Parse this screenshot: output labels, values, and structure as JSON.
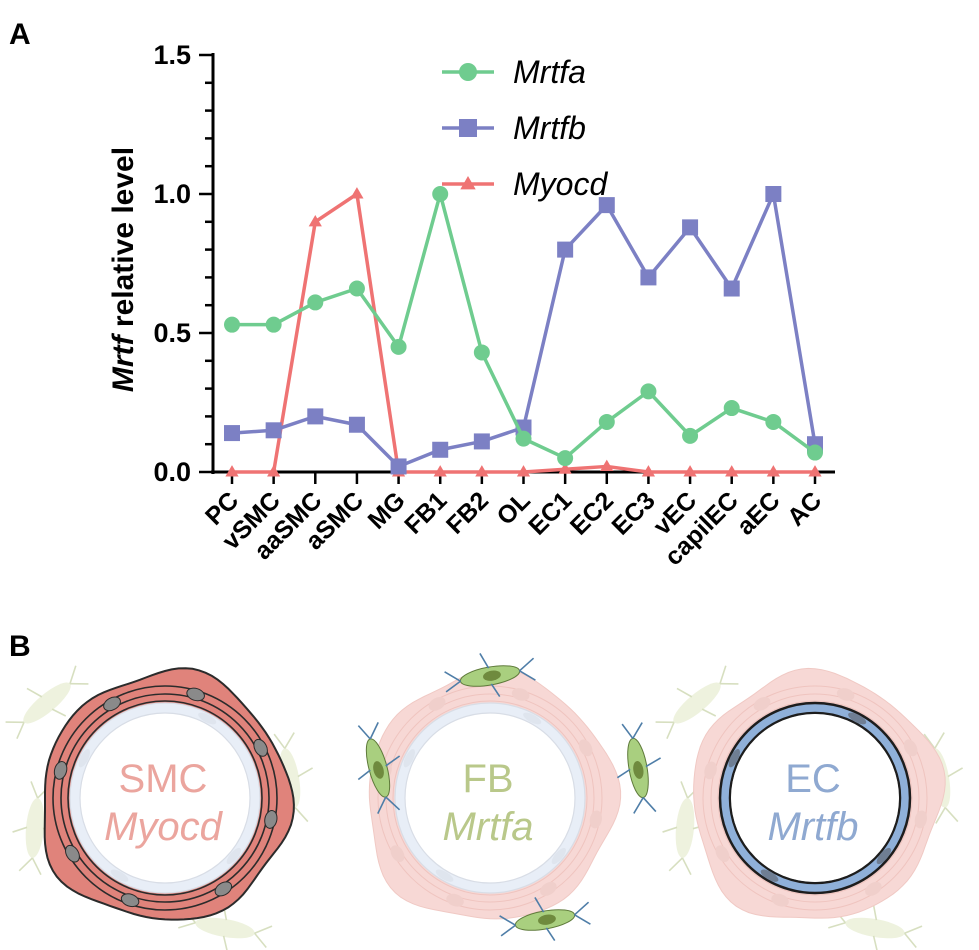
{
  "panel_a_label": "A",
  "panel_b_label": "B",
  "chart_data": {
    "type": "line",
    "title": "",
    "ylabel_italic": "Mrtf",
    "ylabel_rest": " relative level",
    "xlabel": "",
    "ylim": [
      0,
      1.5
    ],
    "yticks": [
      "0.0",
      "0.5",
      "1.0",
      "1.5"
    ],
    "ytick_values": [
      0,
      0.5,
      1.0,
      1.5
    ],
    "categories": [
      "PC",
      "vSMC",
      "aaSMC",
      "aSMC",
      "MG",
      "FB1",
      "FB2",
      "OL",
      "EC1",
      "EC2",
      "EC3",
      "vEC",
      "capilEC",
      "aEC",
      "AC"
    ],
    "legend_position": "top-center",
    "series": [
      {
        "name": "Mrtfa",
        "color": "#6fcc8f",
        "marker": "circle",
        "values": [
          0.53,
          0.53,
          0.61,
          0.66,
          0.45,
          1.0,
          0.43,
          0.12,
          0.05,
          0.18,
          0.29,
          0.13,
          0.23,
          0.18,
          0.07
        ]
      },
      {
        "name": "Mrtfb",
        "color": "#7c80c4",
        "marker": "square",
        "values": [
          0.14,
          0.15,
          0.2,
          0.17,
          0.02,
          0.08,
          0.11,
          0.16,
          0.8,
          0.96,
          0.7,
          0.88,
          0.66,
          1.0,
          0.1
        ]
      },
      {
        "name": "Myocd",
        "color": "#ef7373",
        "marker": "triangle",
        "values": [
          0.0,
          0.0,
          0.9,
          1.0,
          0.0,
          0.0,
          0.0,
          0.0,
          0.01,
          0.02,
          0.0,
          0.0,
          0.0,
          0.0,
          0.0
        ]
      }
    ]
  },
  "vessels": [
    {
      "title": "SMC",
      "gene": "Myocd",
      "highlight": "smc",
      "title_color": "#eba59e",
      "gene_color": "#eba59e"
    },
    {
      "title": "FB",
      "gene": "Mrtfa",
      "highlight": "fb",
      "title_color": "#b9c88a",
      "gene_color": "#b9c88a"
    },
    {
      "title": "EC",
      "gene": "Mrtfb",
      "highlight": "ec",
      "title_color": "#8fa9d1",
      "gene_color": "#8fa9d1"
    }
  ],
  "colors": {
    "smc_strong": "#e0837b",
    "smc_faded": "#f7d8d5",
    "fb_strong": "#a9cf7f",
    "fb_faded": "#eef2de",
    "ec_strong": "#a7bfe0",
    "ec_faded": "#e8eef7",
    "nucleus": "#8a8a8a",
    "outline": "#2b2b2b"
  }
}
